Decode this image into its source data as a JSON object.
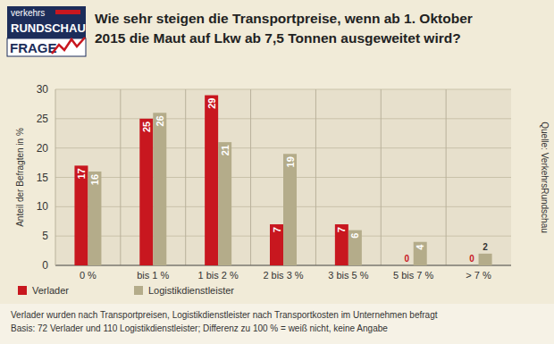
{
  "logo": {
    "line1": "verkehrs",
    "line2": "RUNDSCHAU",
    "line3": "FRAGE"
  },
  "chart_data": {
    "type": "bar",
    "title": "Wie sehr steigen die Transportpreise, wenn ab 1. Oktober\n2015 die Maut auf Lkw ab 7,5 Tonnen ausgeweitet wird?",
    "y_label": "Anteil der Befragten in %",
    "source": "Quelle: VerkehrsRundschau",
    "notes": [
      "Verlader wurden nach Transportpreisen,  Logistikdienstleister nach Transportkosten im Unternehmen befragt",
      "Basis: 72 Verlader und 110 Logistikdienstleister; Differenz zu 100 % = weiß nicht, keine Angabe"
    ],
    "categories": [
      "0 %",
      "bis 1 %",
      "1 bis 2 %",
      "2 bis 3 %",
      "3 bis 5 %",
      "5 bis 7 %",
      "> 7 %"
    ],
    "series": [
      {
        "name": "Verlader",
        "color": "#c8171f",
        "values": [
          17,
          25,
          29,
          7,
          7,
          0,
          0
        ]
      },
      {
        "name": "Logistikdienstleister",
        "color": "#b4ac8a",
        "values": [
          16,
          26,
          21,
          19,
          6,
          4,
          2
        ]
      }
    ],
    "ylim": [
      0,
      30
    ],
    "yticks": [
      0,
      5,
      10,
      15,
      20,
      25,
      30
    ],
    "grid": true,
    "legend": "bottom left",
    "data_labels": true
  }
}
